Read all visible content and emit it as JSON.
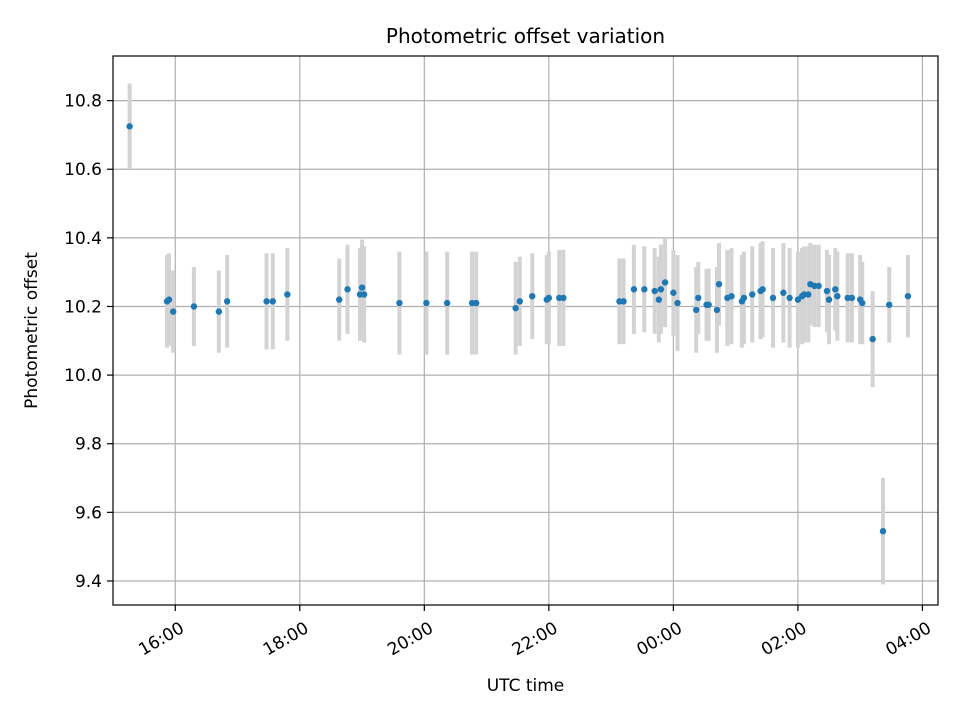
{
  "chart_data": {
    "type": "scatter",
    "title": "Photometric offset variation",
    "xlabel": "UTC time",
    "ylabel": "Photometric offset",
    "xlim": [
      "15:00",
      "04:15"
    ],
    "ylim": [
      9.33,
      10.93
    ],
    "grid": true,
    "x_ticks": [
      "16:00",
      "18:00",
      "20:00",
      "22:00",
      "00:00",
      "02:00",
      "04:00"
    ],
    "y_ticks": [
      "9.4",
      "9.6",
      "9.8",
      "10.0",
      "10.2",
      "10.4",
      "10.6",
      "10.8"
    ],
    "colors": {
      "point": "#1f77b4",
      "errorbar": "#d3d3d3",
      "grid": "#b0b0b0",
      "axes": "#000000"
    },
    "series": [
      {
        "x": [
          "15:16",
          "15:52",
          "15:54",
          "15:58",
          "16:18",
          "16:42",
          "16:50",
          "17:28",
          "17:34",
          "17:48",
          "18:38",
          "18:46",
          "18:58",
          "19:00",
          "19:02",
          "19:36",
          "20:02",
          "20:22",
          "20:46",
          "20:50",
          "21:28",
          "21:32",
          "21:44",
          "21:58",
          "22:00",
          "22:10",
          "22:14",
          "23:08",
          "23:12",
          "23:22",
          "23:32",
          "23:42",
          "23:46",
          "23:48",
          "23:52",
          "24:00",
          "24:04",
          "24:22",
          "24:24",
          "24:32",
          "24:34",
          "24:42",
          "24:44",
          "24:52",
          "24:56",
          "25:06",
          "25:08",
          "25:16",
          "25:24",
          "25:26",
          "25:36",
          "25:46",
          "25:52",
          "26:00",
          "26:04",
          "26:06",
          "26:10",
          "26:12",
          "26:16",
          "26:20",
          "26:28",
          "26:30",
          "26:36",
          "26:38",
          "26:48",
          "26:52",
          "27:00",
          "27:02",
          "27:12",
          "27:22",
          "27:28",
          "27:46"
        ],
        "y": [
          10.725,
          10.215,
          10.22,
          10.185,
          10.2,
          10.185,
          10.215,
          10.215,
          10.215,
          10.235,
          10.22,
          10.25,
          10.235,
          10.255,
          10.235,
          10.21,
          10.21,
          10.21,
          10.21,
          10.21,
          10.195,
          10.215,
          10.23,
          10.22,
          10.225,
          10.225,
          10.225,
          10.215,
          10.215,
          10.25,
          10.25,
          10.245,
          10.22,
          10.25,
          10.27,
          10.24,
          10.21,
          10.19,
          10.225,
          10.205,
          10.205,
          10.19,
          10.265,
          10.225,
          10.23,
          10.215,
          10.225,
          10.235,
          10.245,
          10.25,
          10.225,
          10.24,
          10.225,
          10.22,
          10.23,
          10.235,
          10.235,
          10.265,
          10.26,
          10.26,
          10.245,
          10.22,
          10.25,
          10.23,
          10.225,
          10.225,
          10.22,
          10.21,
          10.105,
          9.545,
          10.205,
          10.23
        ],
        "yerr": [
          0.125,
          0.135,
          0.135,
          0.12,
          0.115,
          0.12,
          0.135,
          0.14,
          0.14,
          0.135,
          0.12,
          0.13,
          0.135,
          0.14,
          0.14,
          0.15,
          0.15,
          0.15,
          0.15,
          0.15,
          0.135,
          0.13,
          0.125,
          0.13,
          0.135,
          0.14,
          0.14,
          0.125,
          0.125,
          0.13,
          0.125,
          0.125,
          0.125,
          0.13,
          0.13,
          0.125,
          0.14,
          0.125,
          0.105,
          0.105,
          0.105,
          0.125,
          0.12,
          0.14,
          0.14,
          0.135,
          0.135,
          0.14,
          0.14,
          0.14,
          0.145,
          0.145,
          0.145,
          0.14,
          0.14,
          0.14,
          0.14,
          0.12,
          0.12,
          0.12,
          0.12,
          0.13,
          0.12,
          0.13,
          0.13,
          0.13,
          0.13,
          0.12,
          0.14,
          0.155,
          0.11,
          0.12
        ]
      }
    ]
  }
}
